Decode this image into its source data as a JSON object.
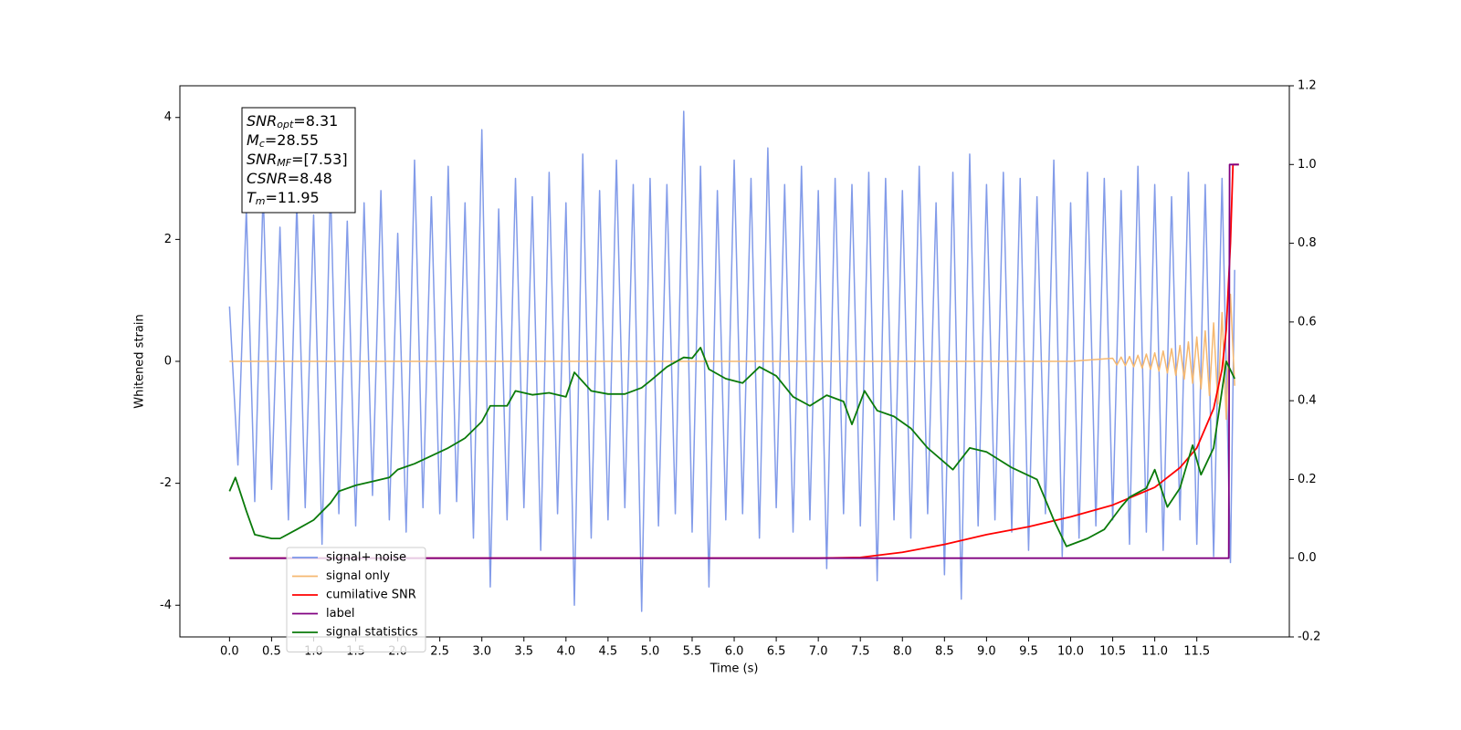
{
  "chart_data": {
    "type": "line",
    "xlabel": "Time (s)",
    "ylabel": "Whitened strain",
    "xlim": [
      -0.59,
      12.6
    ],
    "ylim": [
      -4.52,
      4.52
    ],
    "y2lim": [
      -0.2,
      1.2
    ],
    "xticks": [
      {
        "value": 0,
        "label": "0.0"
      },
      {
        "value": 0.5,
        "label": "0.5"
      },
      {
        "value": 1,
        "label": "1.0"
      },
      {
        "value": 1.5,
        "label": "1.5"
      },
      {
        "value": 2,
        "label": "2.0"
      },
      {
        "value": 2.5,
        "label": "2.5"
      },
      {
        "value": 3,
        "label": "3.0"
      },
      {
        "value": 3.5,
        "label": "3.5"
      },
      {
        "value": 4,
        "label": "4.0"
      },
      {
        "value": 4.5,
        "label": "4.5"
      },
      {
        "value": 5,
        "label": "5.0"
      },
      {
        "value": 5.5,
        "label": "5.5"
      },
      {
        "value": 6,
        "label": "6.0"
      },
      {
        "value": 6.5,
        "label": "6.5"
      },
      {
        "value": 7,
        "label": "7.0"
      },
      {
        "value": 7.5,
        "label": "7.5"
      },
      {
        "value": 8,
        "label": "8.0"
      },
      {
        "value": 8.5,
        "label": "8.5"
      },
      {
        "value": 9,
        "label": "9.0"
      },
      {
        "value": 9.5,
        "label": "9.5"
      },
      {
        "value": 10,
        "label": "10.0"
      },
      {
        "value": 10.5,
        "label": "10.5"
      },
      {
        "value": 11,
        "label": "11.0"
      },
      {
        "value": 11.5,
        "label": "11.5"
      }
    ],
    "yticks": [
      -4,
      -2,
      0,
      2,
      4
    ],
    "y2ticks": [
      -0.2,
      {
        "value": 0,
        "label": "0.0"
      },
      0.2,
      0.4,
      0.6,
      0.8,
      {
        "value": 1,
        "label": "1.0"
      },
      1.2
    ],
    "annotation": [
      {
        "name": "SNR",
        "sub": "opt",
        "text": "=8.31"
      },
      {
        "name": "M",
        "sub": "c",
        "text": "=28.55"
      },
      {
        "name": "SNR",
        "sub": "MF",
        "text": "=[7.53]"
      },
      {
        "name": "CSNR",
        "text": "=8.48"
      },
      {
        "name": "T",
        "sub": "m",
        "text": "=11.95"
      }
    ],
    "legend": "lower left",
    "series": [
      {
        "name": "signal+ noise",
        "color": "#7b96e8",
        "axis": "y",
        "x": [
          0.0,
          0.1,
          0.2,
          0.3,
          0.4,
          0.5,
          0.6,
          0.7,
          0.8,
          0.9,
          1.0,
          1.1,
          1.2,
          1.3,
          1.4,
          1.5,
          1.6,
          1.7,
          1.8,
          1.9,
          2.0,
          2.1,
          2.2,
          2.3,
          2.4,
          2.5,
          2.6,
          2.7,
          2.8,
          2.9,
          3.0,
          3.1,
          3.2,
          3.3,
          3.4,
          3.5,
          3.6,
          3.7,
          3.8,
          3.9,
          4.0,
          4.1,
          4.2,
          4.3,
          4.4,
          4.5,
          4.6,
          4.7,
          4.8,
          4.9,
          5.0,
          5.1,
          5.2,
          5.3,
          5.4,
          5.5,
          5.6,
          5.7,
          5.8,
          5.9,
          6.0,
          6.1,
          6.2,
          6.3,
          6.4,
          6.5,
          6.6,
          6.7,
          6.8,
          6.9,
          7.0,
          7.1,
          7.2,
          7.3,
          7.4,
          7.5,
          7.6,
          7.7,
          7.8,
          7.9,
          8.0,
          8.1,
          8.2,
          8.3,
          8.4,
          8.5,
          8.6,
          8.7,
          8.8,
          8.9,
          9.0,
          9.1,
          9.2,
          9.3,
          9.4,
          9.5,
          9.6,
          9.7,
          9.8,
          9.9,
          10.0,
          10.1,
          10.2,
          10.3,
          10.4,
          10.5,
          10.6,
          10.7,
          10.8,
          10.9,
          11.0,
          11.1,
          11.2,
          11.3,
          11.4,
          11.5,
          11.6,
          11.7,
          11.8,
          11.9,
          11.95
        ],
        "values": [
          0.9,
          -1.7,
          2.5,
          -2.3,
          2.8,
          -2.1,
          2.2,
          -2.6,
          2.6,
          -2.4,
          2.4,
          -3.0,
          2.9,
          -2.5,
          2.3,
          -2.7,
          2.6,
          -2.2,
          2.8,
          -2.6,
          2.1,
          -2.8,
          3.3,
          -2.4,
          2.7,
          -2.5,
          3.2,
          -2.3,
          2.6,
          -2.9,
          3.8,
          -3.7,
          2.5,
          -2.6,
          3.0,
          -2.4,
          2.7,
          -3.1,
          3.1,
          -2.5,
          2.6,
          -4.0,
          3.4,
          -2.9,
          2.8,
          -2.6,
          3.3,
          -2.4,
          2.9,
          -4.1,
          3.0,
          -2.7,
          2.9,
          -2.5,
          4.1,
          -2.8,
          3.2,
          -3.7,
          2.8,
          -2.6,
          3.3,
          -2.5,
          3.0,
          -2.9,
          3.5,
          -2.4,
          2.9,
          -2.8,
          3.2,
          -2.6,
          2.8,
          -3.4,
          3.0,
          -2.5,
          2.9,
          -2.7,
          3.1,
          -3.6,
          3.0,
          -2.6,
          2.8,
          -2.9,
          3.2,
          -2.5,
          2.6,
          -3.5,
          3.1,
          -3.9,
          3.4,
          -2.7,
          2.9,
          -2.6,
          3.1,
          -2.8,
          3.0,
          -3.1,
          2.7,
          -2.5,
          3.3,
          -3.2,
          2.6,
          -2.9,
          3.1,
          -2.7,
          3.0,
          -2.6,
          2.8,
          -3.0,
          3.2,
          -2.8,
          2.9,
          -3.1,
          2.7,
          -2.6,
          3.1,
          -3.0,
          2.9,
          -3.2,
          3.0,
          -3.3,
          1.5
        ]
      },
      {
        "name": "signal only",
        "color": "#f5b870",
        "axis": "y",
        "x": [
          0,
          10.0,
          10.5,
          10.55,
          10.6,
          10.65,
          10.7,
          10.75,
          10.8,
          10.85,
          10.9,
          10.95,
          11.0,
          11.05,
          11.1,
          11.15,
          11.2,
          11.25,
          11.3,
          11.35,
          11.4,
          11.45,
          11.5,
          11.55,
          11.6,
          11.65,
          11.7,
          11.75,
          11.8,
          11.85,
          11.9,
          11.95
        ],
        "values": [
          0,
          0,
          0.05,
          -0.06,
          0.07,
          -0.07,
          0.08,
          -0.09,
          0.1,
          -0.11,
          0.12,
          -0.13,
          0.14,
          -0.16,
          0.17,
          -0.19,
          0.21,
          -0.23,
          0.26,
          -0.29,
          0.32,
          -0.36,
          0.4,
          -0.45,
          0.5,
          -0.56,
          0.63,
          -0.7,
          0.8,
          -0.95,
          1.1,
          -0.4
        ]
      },
      {
        "name": "cumilative SNR",
        "color": "#ff0000",
        "axis": "y2",
        "x": [
          0,
          7.0,
          7.5,
          8.0,
          8.5,
          9.0,
          9.5,
          10.0,
          10.5,
          11.0,
          11.3,
          11.5,
          11.7,
          11.8,
          11.85,
          11.9,
          11.93,
          12.0
        ],
        "values": [
          0,
          0,
          0.002,
          0.015,
          0.035,
          0.06,
          0.08,
          0.105,
          0.135,
          0.18,
          0.23,
          0.28,
          0.38,
          0.48,
          0.58,
          0.8,
          1.0,
          1.0
        ]
      },
      {
        "name": "label",
        "color": "#800080",
        "axis": "y2",
        "x": [
          0,
          11.88,
          11.89,
          12.0
        ],
        "values": [
          0,
          0,
          1.0,
          1.0
        ]
      },
      {
        "name": "signal statistics",
        "color": "#0a7a0a",
        "axis": "y2",
        "x": [
          0.0,
          0.07,
          0.2,
          0.3,
          0.5,
          0.6,
          0.8,
          1.0,
          1.2,
          1.3,
          1.5,
          1.7,
          1.9,
          2.0,
          2.2,
          2.4,
          2.6,
          2.8,
          3.0,
          3.1,
          3.3,
          3.4,
          3.6,
          3.8,
          4.0,
          4.1,
          4.3,
          4.5,
          4.7,
          4.9,
          5.0,
          5.2,
          5.4,
          5.5,
          5.6,
          5.7,
          5.9,
          6.1,
          6.3,
          6.5,
          6.7,
          6.9,
          7.1,
          7.3,
          7.4,
          7.55,
          7.7,
          7.9,
          8.1,
          8.3,
          8.6,
          8.8,
          9.0,
          9.3,
          9.6,
          9.8,
          9.95,
          10.2,
          10.4,
          10.6,
          10.7,
          10.9,
          11.0,
          11.15,
          11.3,
          11.45,
          11.55,
          11.7,
          11.85,
          11.95
        ],
        "values": [
          0.17,
          0.205,
          0.12,
          0.06,
          0.05,
          0.05,
          0.073,
          0.097,
          0.14,
          0.17,
          0.185,
          0.195,
          0.205,
          0.225,
          0.24,
          0.26,
          0.28,
          0.305,
          0.347,
          0.387,
          0.387,
          0.425,
          0.415,
          0.42,
          0.41,
          0.472,
          0.425,
          0.417,
          0.417,
          0.433,
          0.45,
          0.486,
          0.51,
          0.508,
          0.535,
          0.48,
          0.456,
          0.445,
          0.486,
          0.463,
          0.41,
          0.387,
          0.414,
          0.398,
          0.34,
          0.425,
          0.375,
          0.36,
          0.33,
          0.28,
          0.225,
          0.28,
          0.27,
          0.23,
          0.2,
          0.097,
          0.03,
          0.05,
          0.073,
          0.13,
          0.155,
          0.178,
          0.225,
          0.13,
          0.178,
          0.287,
          0.212,
          0.28,
          0.5,
          0.456
        ]
      }
    ]
  }
}
